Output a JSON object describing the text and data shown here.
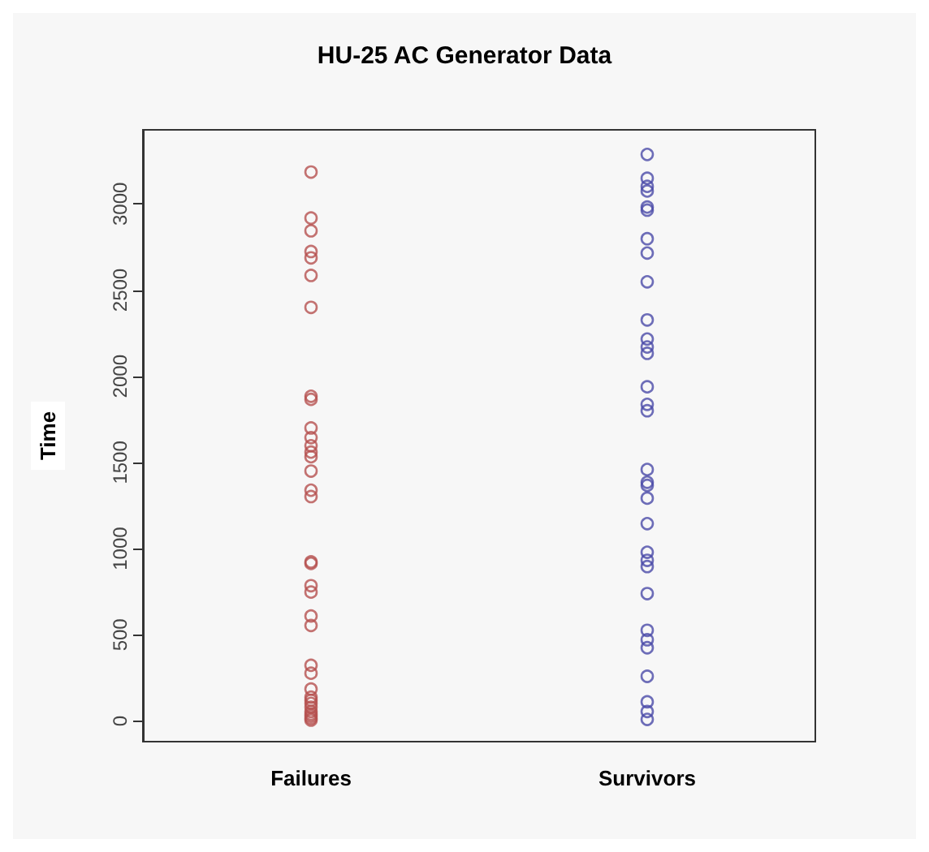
{
  "chart_data": {
    "type": "scatter",
    "title": "HU-25 AC Generator Data",
    "ylabel": "Time",
    "categories": [
      "Failures",
      "Survivors"
    ],
    "ylim": [
      -120,
      3430
    ],
    "yticks": [
      0,
      500,
      1000,
      1500,
      2000,
      2500,
      3000
    ],
    "grid": false,
    "marker": "circle",
    "series": [
      {
        "color": "#b5504f",
        "x": [
          "Failures",
          "Failures",
          "Failures",
          "Failures",
          "Failures",
          "Failures",
          "Failures",
          "Failures",
          "Failures",
          "Failures",
          "Failures",
          "Failures",
          "Failures",
          "Failures",
          "Failures",
          "Failures",
          "Failures",
          "Failures",
          "Failures",
          "Failures",
          "Failures",
          "Failures",
          "Failures",
          "Failures",
          "Failures",
          "Failures",
          "Failures",
          "Failures",
          "Failures",
          "Failures",
          "Failures",
          "Failures",
          "Failures",
          "Failures",
          "Failures"
        ],
        "values": [
          3185,
          2918,
          2844,
          2724,
          2687,
          2585,
          2400,
          1884,
          1866,
          1700,
          1644,
          1597,
          1560,
          1533,
          1450,
          1339,
          1302,
          923,
          914,
          785,
          748,
          609,
          554,
          323,
          277,
          185,
          138,
          120,
          102,
          80,
          55,
          40,
          28,
          15,
          5
        ]
      },
      {
        "color": "#4a4aa8",
        "x": [
          "Survivors",
          "Survivors",
          "Survivors",
          "Survivors",
          "Survivors",
          "Survivors",
          "Survivors",
          "Survivors",
          "Survivors",
          "Survivors",
          "Survivors",
          "Survivors",
          "Survivors",
          "Survivors",
          "Survivors",
          "Survivors",
          "Survivors",
          "Survivors",
          "Survivors",
          "Survivors",
          "Survivors",
          "Survivors",
          "Survivors",
          "Survivors",
          "Survivors",
          "Survivors",
          "Survivors",
          "Survivors",
          "Survivors",
          "Survivors",
          "Survivors",
          "Survivors"
        ],
        "values": [
          3287,
          3149,
          3102,
          3075,
          2982,
          2964,
          2798,
          2715,
          2548,
          2327,
          2216,
          2170,
          2133,
          1939,
          1837,
          1800,
          1459,
          1385,
          1367,
          1293,
          1145,
          979,
          932,
          896,
          739,
          526,
          471,
          425,
          259,
          111,
          55,
          9
        ]
      }
    ]
  }
}
